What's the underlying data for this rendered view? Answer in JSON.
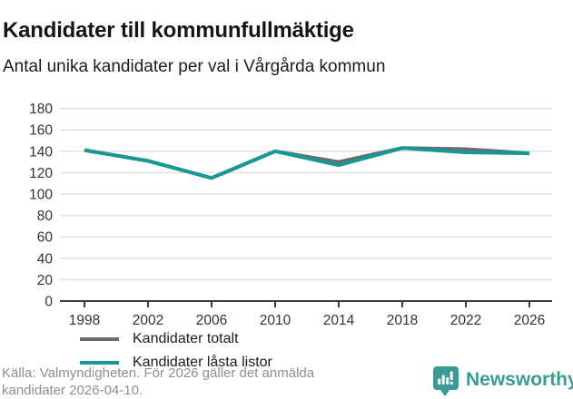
{
  "title": "Kandidater till kommunfullmäktige",
  "subtitle": "Antal unika kandidater per val i Vårgårda kommun",
  "chart_data": {
    "type": "line",
    "categories": [
      "1998",
      "2002",
      "2006",
      "2010",
      "2014",
      "2018",
      "2022",
      "2026"
    ],
    "series": [
      {
        "name": "Kandidater totalt",
        "color": "#6b6b70",
        "values": [
          141,
          131,
          115,
          140,
          130,
          143,
          142,
          138
        ]
      },
      {
        "name": "Kandidater låsta listor",
        "color": "#149a93",
        "values": [
          141,
          131,
          115,
          140,
          127,
          143,
          139,
          138
        ]
      }
    ],
    "xlabel": "",
    "ylabel": "",
    "ylim": [
      0,
      180
    ],
    "ytick_step": 20,
    "grid": "horizontal",
    "gridline_color": "#e2e2e2",
    "axis_color": "#3c3c3c",
    "tick_label_color": "#333333",
    "legend_position": "inside-lower-left"
  },
  "footer": {
    "source_line1": "Källa: Valmyndigheten. För 2026 gäller det anmälda",
    "source_line2": "kandidater 2026-04-10."
  },
  "branding": {
    "name": "Newsworthy",
    "logo_icon": "bar-chart-speech-bubble-icon",
    "color": "#3a9a96"
  }
}
